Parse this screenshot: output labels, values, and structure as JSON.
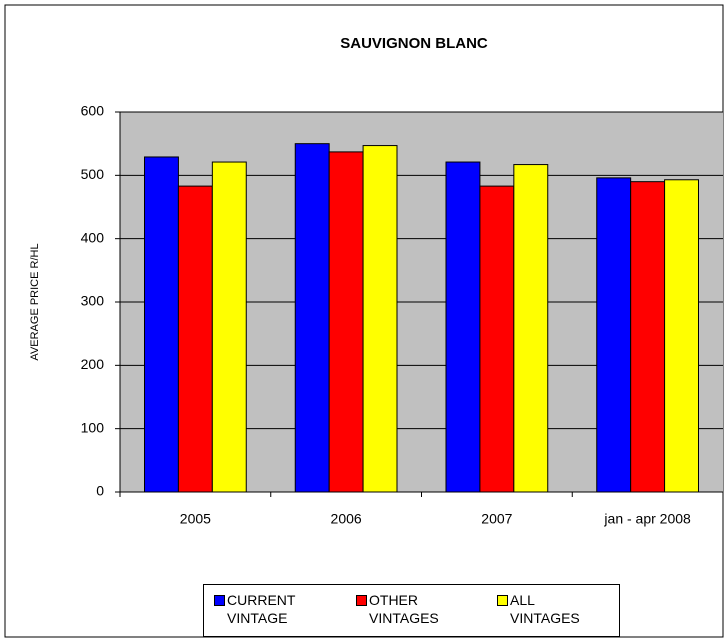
{
  "chart_data": {
    "type": "bar",
    "title": "SAUVIGNON BLANC",
    "y_label": "AVERAGE PRICE R/HL",
    "categories": [
      "2005",
      "2006",
      "2007",
      "jan - apr 2008"
    ],
    "series": [
      {
        "name": "CURRENT VINTAGE",
        "color": "#0000ff",
        "values": [
          529,
          550,
          521,
          496
        ]
      },
      {
        "name": "OTHER VINTAGES",
        "color": "#ff0000",
        "values": [
          483,
          537,
          483,
          490
        ]
      },
      {
        "name": "ALL VINTAGES",
        "color": "#ffff00",
        "values": [
          521,
          547,
          517,
          493
        ]
      }
    ],
    "ylim": [
      0,
      600
    ],
    "yticks": [
      0,
      100,
      200,
      300,
      400,
      500,
      600
    ],
    "grid": true,
    "legend": "bottom"
  }
}
